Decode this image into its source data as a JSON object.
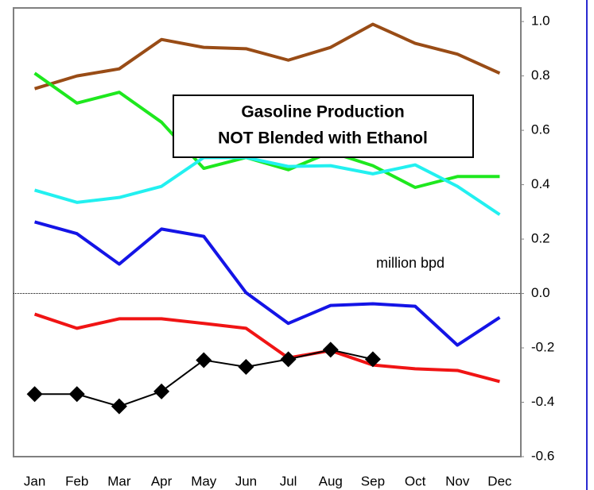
{
  "chart_data": {
    "type": "line",
    "title": [
      "Gasoline Production",
      "NOT Blended with Ethanol"
    ],
    "annotation": "million bpd",
    "categories": [
      "Jan",
      "Feb",
      "Mar",
      "Apr",
      "May",
      "Jun",
      "Jul",
      "Aug",
      "Sep",
      "Oct",
      "Nov",
      "Dec"
    ],
    "series": [
      {
        "color": "#994c16",
        "values": [
          0.753,
          0.8,
          0.826,
          0.934,
          0.905,
          0.9,
          0.858,
          0.905,
          0.99,
          0.92,
          0.88,
          0.81
        ]
      },
      {
        "color": "#1ee81e",
        "values": [
          0.81,
          0.7,
          0.74,
          0.63,
          0.46,
          0.5,
          0.455,
          0.52,
          0.47,
          0.39,
          0.43,
          0.43
        ]
      },
      {
        "color": "#22f0f0",
        "values": [
          0.38,
          0.335,
          0.353,
          0.394,
          0.5,
          0.5,
          0.467,
          0.47,
          0.44,
          0.473,
          0.394,
          0.29
        ]
      },
      {
        "color": "#1414e6",
        "values": [
          0.263,
          0.22,
          0.108,
          0.237,
          0.21,
          0.003,
          -0.11,
          -0.044,
          -0.038,
          -0.047,
          -0.19,
          -0.088
        ]
      },
      {
        "color": "#f01414",
        "values": [
          -0.076,
          -0.128,
          -0.093,
          -0.093,
          -0.11,
          -0.128,
          -0.237,
          -0.21,
          -0.263,
          -0.277,
          -0.283,
          -0.324
        ]
      },
      {
        "color": "#000000",
        "marker": "diamond",
        "values": [
          -0.37,
          -0.37,
          -0.415,
          -0.36,
          -0.245,
          -0.27,
          -0.242,
          -0.207,
          -0.242,
          null,
          null,
          null
        ]
      }
    ],
    "ylim": [
      -0.6,
      1.05
    ],
    "yticks": [
      {
        "value": -0.6,
        "label": "-0.6"
      },
      {
        "value": -0.4,
        "label": "-0.4"
      },
      {
        "value": -0.2,
        "label": "-0.2"
      },
      {
        "value": 0,
        "label": "0.0"
      },
      0.2,
      0.4,
      0.6,
      0.8,
      {
        "value": 1,
        "label": "1.0"
      }
    ],
    "axis_side": "right"
  }
}
